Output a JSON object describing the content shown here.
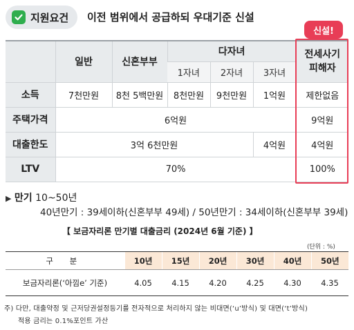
{
  "header": {
    "badge_label": "지원요건",
    "title": "이전 범위에서 공급하되 우대기준 신설",
    "new_tag": "신설!"
  },
  "table": {
    "col_headers": {
      "general": "일반",
      "newlywed": "신혼부부",
      "multichild": "다자녀",
      "victim": "전세사기\n피해자"
    },
    "sub_headers": [
      "1자녀",
      "2자녀",
      "3자녀"
    ],
    "rows": {
      "income": {
        "label": "소득",
        "general": "7천만원",
        "newlywed": "8천 5백만원",
        "child1": "8천만원",
        "child2": "9천만원",
        "child3": "1억원",
        "victim": "제한없음"
      },
      "price": {
        "label": "주택가격",
        "common": "6억원",
        "victim": "9억원"
      },
      "limit": {
        "label": "대출한도",
        "common": "3억 6천만원",
        "child3": "4억원",
        "victim": "4억원"
      },
      "ltv": {
        "label": "LTV",
        "common": "70%",
        "victim": "100%"
      }
    }
  },
  "maturity": {
    "label": "만기",
    "range": " 10~50년",
    "detail": "40년만기 : 39세이하(신혼부부 49세) / 50년만기 : 34세이하(신혼부부 39세)"
  },
  "rates": {
    "title": "【 보금자리론 만기별 대출금리 (2024년 6월 기준) 】",
    "unit": "(단위 : %)",
    "header_label": "구 분",
    "years": [
      "10년",
      "15년",
      "20년",
      "30년",
      "40년",
      "50년"
    ],
    "row_label": "보금자리론(‘아낌e’ 기준)",
    "values": [
      "4.05",
      "4.15",
      "4.20",
      "4.25",
      "4.30",
      "4.35"
    ]
  },
  "note": {
    "line1": "주) 다만, 대출약정 및 근저당권설정등기를 전자적으로 처리하지 않는 비대면(‘u’방식) 및 대면(‘t’방식)",
    "line2": "적용 금리는 0.1%포인트 가산"
  },
  "colors": {
    "accent_red": "#e83d56",
    "check_green": "#2fae4e",
    "header_gray": "#e8ebed",
    "rate_header": "#fbe8d6"
  }
}
